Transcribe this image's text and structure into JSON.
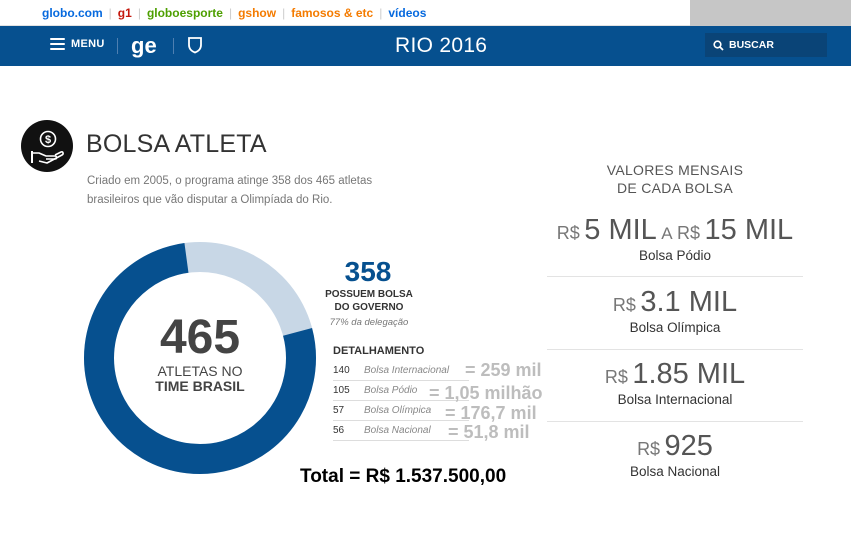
{
  "topbar": {
    "links": [
      {
        "label": "globo.com",
        "color": "#0669de"
      },
      {
        "label": "g1",
        "color": "#c4170c"
      },
      {
        "label": "globoesporte",
        "color": "#4d9f00"
      },
      {
        "label": "gshow",
        "color": "#f47b00"
      },
      {
        "label": "famosos & etc",
        "color": "#f47b00"
      },
      {
        "label": "vídeos",
        "color": "#0669de"
      }
    ]
  },
  "header": {
    "menu_label": "MENU",
    "logo": "ge",
    "title": "RIO 2016",
    "search_label": "BUSCAR",
    "bg_color": "#06508f"
  },
  "section": {
    "title": "BOLSA ATLETA",
    "intro": "Criado em 2005, o programa atinge 358 dos 465 atletas brasileiros que vão disputar a Olimpíada do Rio."
  },
  "donut": {
    "total": "465",
    "label_line1": "ATLETAS NO",
    "label_line2": "TIME BRASIL",
    "fraction_with_bolsa": 0.77,
    "colors": {
      "filled": "#06508f",
      "rest": "#c8d7e6"
    }
  },
  "summary": {
    "count": "358",
    "line1": "POSSUEM BOLSA",
    "line2": "DO GOVERNO",
    "sub": "77% da delegação"
  },
  "detalhamento": {
    "heading": "DETALHAMENTO",
    "rows": [
      {
        "count": "140",
        "category": "Bolsa Internacional",
        "note": "= 259 mil"
      },
      {
        "count": "105",
        "category": "Bolsa Pódio",
        "note": "= 1,05 milhão"
      },
      {
        "count": "57",
        "category": "Bolsa Olímpica",
        "note": "= 176,7 mil"
      },
      {
        "count": "56",
        "category": "Bolsa Nacional",
        "note": "= 51,8 mil"
      }
    ]
  },
  "total": "Total = R$ 1.537.500,00",
  "valores": {
    "heading_line1": "VALORES MENSAIS",
    "heading_line2": "DE CADA BOLSA",
    "currency": "R$",
    "connector": "A",
    "items": [
      {
        "from": "5 MIL",
        "to": "15 MIL",
        "label": "Bolsa Pódio"
      },
      {
        "value": "3.1 MIL",
        "label": "Bolsa Olímpica"
      },
      {
        "value": "1.85 MIL",
        "label": "Bolsa Internacional"
      },
      {
        "value": "925",
        "label": "Bolsa Nacional"
      }
    ]
  }
}
